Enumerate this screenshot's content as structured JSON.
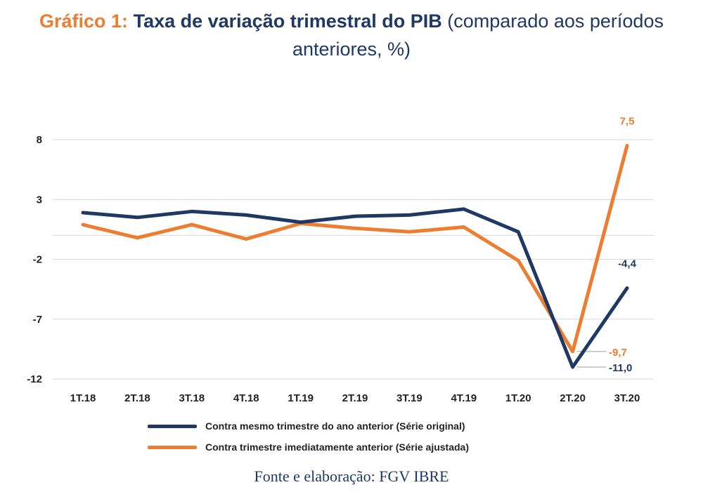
{
  "title": {
    "prefix": "Gráfico 1:",
    "main": "Taxa de variação trimestral do PIB",
    "rest": "(comparado aos períodos anteriores, %)"
  },
  "source": "Fonte e elaboração: FGV IBRE",
  "colors": {
    "navy": "#1f3864",
    "orange": "#ed7d31",
    "grid": "#d9d9d9",
    "leader": "#bfbfbf"
  },
  "chart_data": {
    "type": "line",
    "categories": [
      "1T.18",
      "2T.18",
      "3T.18",
      "4T.18",
      "1T.19",
      "2T.19",
      "3T.19",
      "4T.19",
      "1T.20",
      "2T.20",
      "3T.20"
    ],
    "y_ticks": [
      "8",
      "3",
      "-2",
      "-7",
      "-12"
    ],
    "ylim": [
      -12,
      8
    ],
    "grid": true,
    "legend_position": "bottom",
    "series": [
      {
        "name": "Contra mesmo trimestre do ano anterior (Série original)",
        "color": "#1f3864",
        "values": [
          1.9,
          1.5,
          2.0,
          1.7,
          1.1,
          1.6,
          1.7,
          2.2,
          0.3,
          -11.0,
          -4.4
        ]
      },
      {
        "name": "Contra trimestre imediatamente anterior (Série ajustada)",
        "color": "#ed7d31",
        "values": [
          0.9,
          -0.2,
          0.9,
          -0.3,
          1.0,
          0.6,
          0.3,
          0.7,
          -2.1,
          -9.7,
          7.5
        ]
      }
    ],
    "data_labels": [
      {
        "text": "7,5",
        "series": 1,
        "index": 10,
        "color": "#ed7d31"
      },
      {
        "text": "-4,4",
        "series": 0,
        "index": 10,
        "color": "#1f3864"
      },
      {
        "text": "-9,7",
        "series": 1,
        "index": 9,
        "color": "#ed7d31"
      },
      {
        "text": "-11,0",
        "series": 0,
        "index": 9,
        "color": "#1f3864"
      }
    ]
  }
}
